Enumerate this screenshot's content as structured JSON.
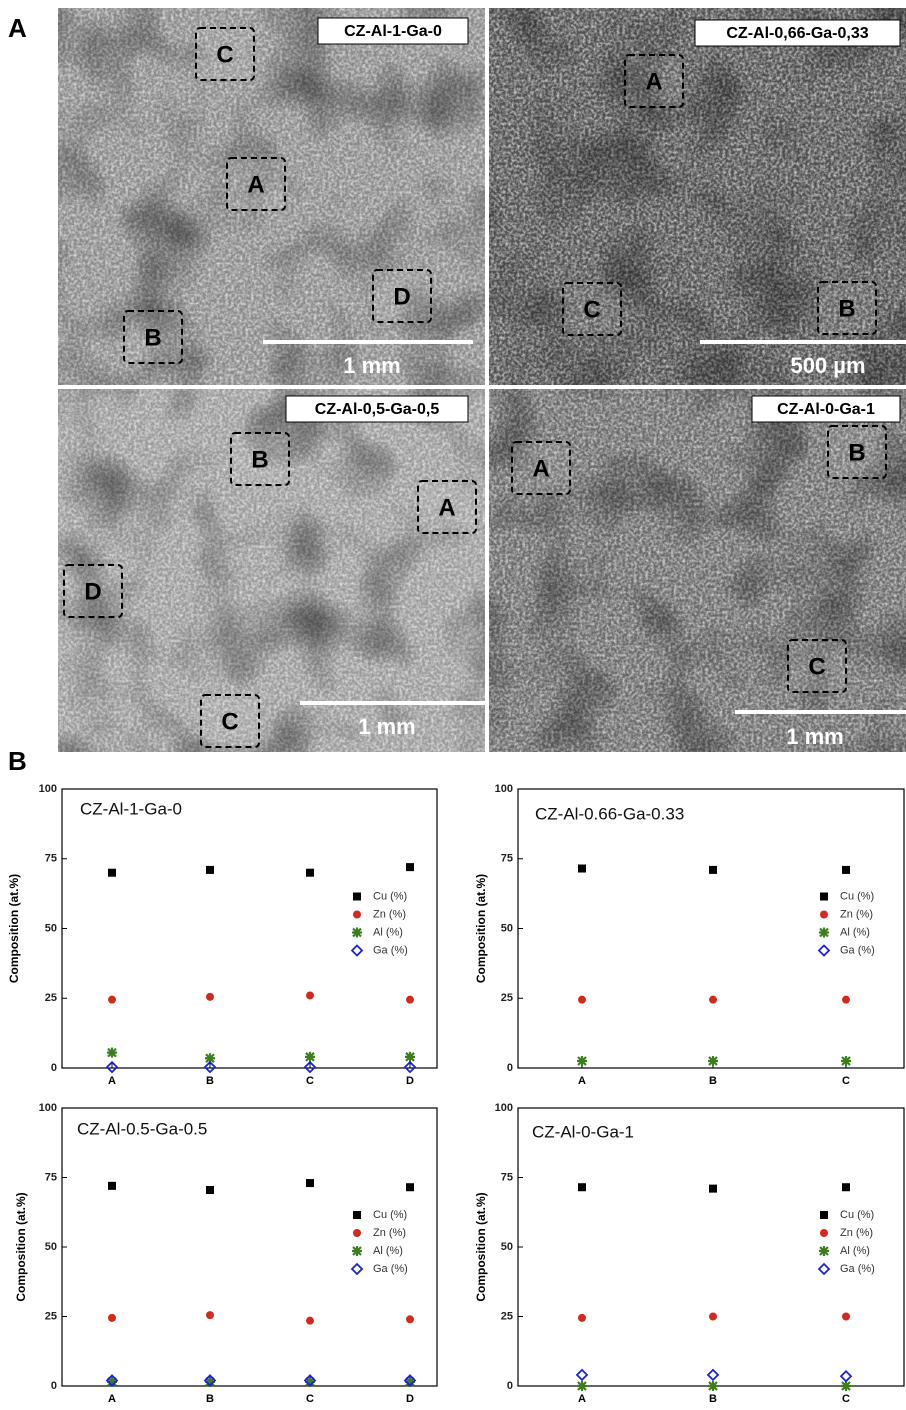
{
  "panel_labels": [
    "A",
    "B"
  ],
  "micrographs": [
    {
      "label": "CZ-Al-1-Ga-0",
      "scale_bar": "1 mm",
      "regions": [
        "C",
        "A",
        "D",
        "B"
      ]
    },
    {
      "label": "CZ-Al-0,66-Ga-0,33",
      "scale_bar": "500 µm",
      "regions": [
        "A",
        "C",
        "B"
      ]
    },
    {
      "label": "CZ-Al-0,5-Ga-0,5",
      "scale_bar": "1 mm",
      "regions": [
        "B",
        "A",
        "D",
        "C"
      ]
    },
    {
      "label": "CZ-Al-0-Ga-1",
      "scale_bar": "1 mm",
      "regions": [
        "A",
        "B",
        "C"
      ]
    }
  ],
  "chart_data": [
    {
      "type": "scatter",
      "title": "CZ-Al-1-Ga-0",
      "y_label": "Composition (at.%)",
      "categories": [
        "A",
        "B",
        "C",
        "D"
      ],
      "ylim": [
        0,
        100
      ],
      "yticks": [
        0,
        25,
        50,
        75,
        100
      ],
      "legend": "center right",
      "series": [
        {
          "name": "Cu (%)",
          "color": "#000000",
          "marker": "square",
          "values": [
            70,
            71,
            70,
            72
          ]
        },
        {
          "name": "Zn (%)",
          "color": "#d42a1e",
          "marker": "circle",
          "values": [
            24.5,
            25.5,
            26,
            24.5
          ]
        },
        {
          "name": "Al (%)",
          "color": "#3c7d1c",
          "marker": "star",
          "values": [
            5.5,
            3.5,
            4,
            4
          ]
        },
        {
          "name": "Ga (%)",
          "color": "#1c22d8",
          "marker": "diamond",
          "values": [
            0.3,
            0.3,
            0.3,
            0.3
          ]
        }
      ]
    },
    {
      "type": "scatter",
      "title": "CZ-Al-0.66-Ga-0.33",
      "y_label": "Composition (at.%)",
      "categories": [
        "A",
        "B",
        "C"
      ],
      "ylim": [
        0,
        100
      ],
      "yticks": [
        0,
        25,
        50,
        75,
        100
      ],
      "legend": "center right",
      "series": [
        {
          "name": "Cu (%)",
          "color": "#000000",
          "marker": "square",
          "values": [
            71.5,
            71,
            71
          ]
        },
        {
          "name": "Zn (%)",
          "color": "#d42a1e",
          "marker": "circle",
          "values": [
            24.5,
            24.5,
            24.5
          ]
        },
        {
          "name": "Al (%)",
          "color": "#3c7d1c",
          "marker": "star",
          "values": [
            2.5,
            2.5,
            2.5
          ]
        },
        {
          "name": "Ga (%)",
          "color": "#1c22d8",
          "marker": "diamond",
          "values": [
            null,
            null,
            null
          ]
        }
      ]
    },
    {
      "type": "scatter",
      "title": "CZ-Al-0.5-Ga-0.5",
      "y_label": "Composition (at.%)",
      "categories": [
        "A",
        "B",
        "C",
        "D"
      ],
      "ylim": [
        0,
        100
      ],
      "yticks": [
        0,
        25,
        50,
        75,
        100
      ],
      "legend": "center right",
      "series": [
        {
          "name": "Cu (%)",
          "color": "#000000",
          "marker": "square",
          "values": [
            72,
            70.5,
            73,
            71.5
          ]
        },
        {
          "name": "Zn (%)",
          "color": "#d42a1e",
          "marker": "circle",
          "values": [
            24.5,
            25.5,
            23.5,
            24
          ]
        },
        {
          "name": "Al (%)",
          "color": "#3c7d1c",
          "marker": "star",
          "values": [
            1.5,
            1.5,
            1.5,
            1.5
          ]
        },
        {
          "name": "Ga (%)",
          "color": "#1c22d8",
          "marker": "diamond",
          "values": [
            2,
            2,
            2,
            2
          ]
        }
      ]
    },
    {
      "type": "scatter",
      "title": "CZ-Al-0-Ga-1",
      "y_label": "Composition (at.%)",
      "categories": [
        "A",
        "B",
        "C"
      ],
      "ylim": [
        0,
        100
      ],
      "yticks": [
        0,
        25,
        50,
        75,
        100
      ],
      "legend": "center right",
      "series": [
        {
          "name": "Cu (%)",
          "color": "#000000",
          "marker": "square",
          "values": [
            71.5,
            71,
            71.5
          ]
        },
        {
          "name": "Zn (%)",
          "color": "#d42a1e",
          "marker": "circle",
          "values": [
            24.5,
            25,
            25
          ]
        },
        {
          "name": "Al (%)",
          "color": "#3c7d1c",
          "marker": "star",
          "values": [
            0,
            0,
            0
          ]
        },
        {
          "name": "Ga (%)",
          "color": "#1c22d8",
          "marker": "diamond",
          "values": [
            4,
            4,
            3.5
          ]
        }
      ]
    }
  ]
}
